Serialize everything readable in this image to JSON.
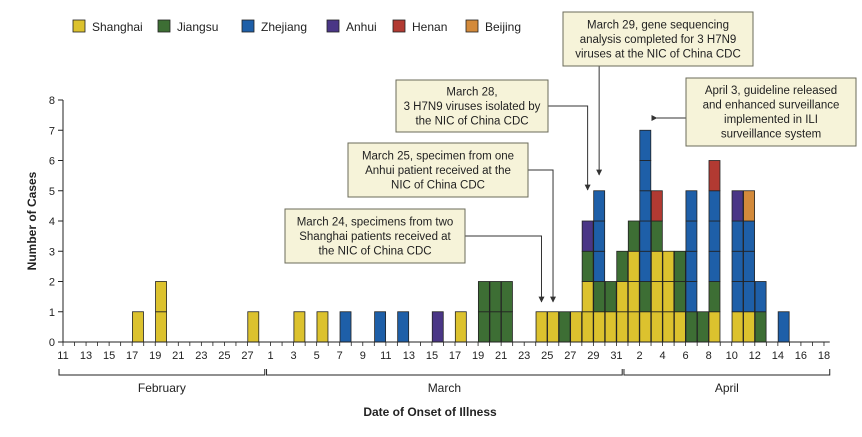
{
  "chart_data": {
    "type": "bar",
    "stacked": true,
    "ylabel": "Number of Cases",
    "xlabel": "Date of Onset of Illness",
    "ylim": [
      0,
      8
    ],
    "yticks": [
      "0",
      "1",
      "2",
      "3",
      "4",
      "5",
      "6",
      "7",
      "8"
    ],
    "grid": false,
    "legend_position": "top-left",
    "days": [
      "2013-02-11",
      "2013-02-12",
      "2013-02-13",
      "2013-02-14",
      "2013-02-15",
      "2013-02-16",
      "2013-02-17",
      "2013-02-18",
      "2013-02-19",
      "2013-02-20",
      "2013-02-21",
      "2013-02-22",
      "2013-02-23",
      "2013-02-24",
      "2013-02-25",
      "2013-02-26",
      "2013-02-27",
      "2013-02-28",
      "2013-03-01",
      "2013-03-02",
      "2013-03-03",
      "2013-03-04",
      "2013-03-05",
      "2013-03-06",
      "2013-03-07",
      "2013-03-08",
      "2013-03-09",
      "2013-03-10",
      "2013-03-11",
      "2013-03-12",
      "2013-03-13",
      "2013-03-14",
      "2013-03-15",
      "2013-03-16",
      "2013-03-17",
      "2013-03-18",
      "2013-03-19",
      "2013-03-20",
      "2013-03-21",
      "2013-03-22",
      "2013-03-23",
      "2013-03-24",
      "2013-03-25",
      "2013-03-26",
      "2013-03-27",
      "2013-03-28",
      "2013-03-29",
      "2013-03-30",
      "2013-03-31",
      "2013-04-01",
      "2013-04-02",
      "2013-04-03",
      "2013-04-04",
      "2013-04-05",
      "2013-04-06",
      "2013-04-07",
      "2013-04-08",
      "2013-04-09",
      "2013-04-10",
      "2013-04-11",
      "2013-04-12",
      "2013-04-13",
      "2013-04-14",
      "2013-04-15",
      "2013-04-16",
      "2013-04-17",
      "2013-04-18"
    ],
    "tick_labels": [
      {
        "date": "2013-02-11",
        "label": "11"
      },
      {
        "date": "2013-02-13",
        "label": "13"
      },
      {
        "date": "2013-02-15",
        "label": "15"
      },
      {
        "date": "2013-02-17",
        "label": "17"
      },
      {
        "date": "2013-02-19",
        "label": "19"
      },
      {
        "date": "2013-02-21",
        "label": "21"
      },
      {
        "date": "2013-02-23",
        "label": "23"
      },
      {
        "date": "2013-02-25",
        "label": "25"
      },
      {
        "date": "2013-02-27",
        "label": "27"
      },
      {
        "date": "2013-03-01",
        "label": "1"
      },
      {
        "date": "2013-03-03",
        "label": "3"
      },
      {
        "date": "2013-03-05",
        "label": "5"
      },
      {
        "date": "2013-03-07",
        "label": "7"
      },
      {
        "date": "2013-03-09",
        "label": "9"
      },
      {
        "date": "2013-03-11",
        "label": "11"
      },
      {
        "date": "2013-03-13",
        "label": "13"
      },
      {
        "date": "2013-03-15",
        "label": "15"
      },
      {
        "date": "2013-03-17",
        "label": "17"
      },
      {
        "date": "2013-03-19",
        "label": "19"
      },
      {
        "date": "2013-03-21",
        "label": "21"
      },
      {
        "date": "2013-03-23",
        "label": "23"
      },
      {
        "date": "2013-03-25",
        "label": "25"
      },
      {
        "date": "2013-03-27",
        "label": "27"
      },
      {
        "date": "2013-03-29",
        "label": "29"
      },
      {
        "date": "2013-03-31",
        "label": "31"
      },
      {
        "date": "2013-04-02",
        "label": "2"
      },
      {
        "date": "2013-04-04",
        "label": "4"
      },
      {
        "date": "2013-04-06",
        "label": "6"
      },
      {
        "date": "2013-04-08",
        "label": "8"
      },
      {
        "date": "2013-04-10",
        "label": "10"
      },
      {
        "date": "2013-04-12",
        "label": "12"
      },
      {
        "date": "2013-04-14",
        "label": "14"
      },
      {
        "date": "2013-04-16",
        "label": "16"
      },
      {
        "date": "2013-04-18",
        "label": "18"
      }
    ],
    "months": [
      {
        "label": "February",
        "start": "2013-02-11",
        "end": "2013-02-28"
      },
      {
        "label": "March",
        "start": "2013-03-01",
        "end": "2013-03-31"
      },
      {
        "label": "April",
        "start": "2013-04-01",
        "end": "2013-04-18"
      }
    ],
    "series": [
      {
        "name": "Shanghai",
        "color": "#dcc22e",
        "cases": {
          "2013-02-17": 1,
          "2013-02-19": 2,
          "2013-02-27": 1,
          "2013-03-03": 1,
          "2013-03-05": 1,
          "2013-03-17": 1,
          "2013-03-24": 1,
          "2013-03-25": 1,
          "2013-03-27": 1,
          "2013-03-28": 2,
          "2013-03-29": 1,
          "2013-03-30": 1,
          "2013-03-31": 2,
          "2013-04-01": 3,
          "2013-04-02": 1,
          "2013-04-03": 3,
          "2013-04-04": 3,
          "2013-04-05": 1,
          "2013-04-08": 1,
          "2013-04-10": 1,
          "2013-04-11": 1
        }
      },
      {
        "name": "Jiangsu",
        "color": "#3d6e34",
        "cases": {
          "2013-03-19": 2,
          "2013-03-20": 2,
          "2013-03-21": 2,
          "2013-03-26": 1,
          "2013-03-28": 1,
          "2013-03-29": 1,
          "2013-03-30": 1,
          "2013-03-31": 1,
          "2013-04-01": 1,
          "2013-04-02": 1,
          "2013-04-03": 1,
          "2013-04-05": 2,
          "2013-04-06": 1,
          "2013-04-07": 1,
          "2013-04-08": 1,
          "2013-04-12": 1
        }
      },
      {
        "name": "Zhejiang",
        "color": "#1e5fa8",
        "cases": {
          "2013-03-07": 1,
          "2013-03-10": 1,
          "2013-03-12": 1,
          "2013-03-29": 3,
          "2013-04-02": 5,
          "2013-04-06": 4,
          "2013-04-08": 3,
          "2013-04-10": 3,
          "2013-04-11": 3,
          "2013-04-12": 1,
          "2013-04-14": 1
        }
      },
      {
        "name": "Anhui",
        "color": "#4a3686",
        "cases": {
          "2013-03-15": 1,
          "2013-03-28": 1,
          "2013-04-10": 1
        }
      },
      {
        "name": "Henan",
        "color": "#b23a32",
        "cases": {
          "2013-04-03": 1,
          "2013-04-08": 1
        }
      },
      {
        "name": "Beijing",
        "color": "#d38a3b",
        "cases": {
          "2013-04-11": 1
        }
      }
    ],
    "annotations": [
      {
        "id": "mar24",
        "target": "2013-03-24",
        "lines": [
          "March 24, specimens from two",
          "Shanghai patients received at",
          "the NIC of China CDC"
        ]
      },
      {
        "id": "mar25",
        "target": "2013-03-25",
        "lines": [
          "March 25, specimen from one",
          "Anhui patient received at the",
          "NIC of China CDC"
        ]
      },
      {
        "id": "mar28",
        "target": "2013-03-28",
        "lines": [
          "March 28,",
          "3 H7N9 viruses isolated by",
          "the NIC of China CDC"
        ]
      },
      {
        "id": "mar29",
        "target": "2013-03-29",
        "lines": [
          "March 29, gene sequencing",
          "analysis completed for 3 H7N9",
          "viruses at the NIC of China CDC"
        ]
      },
      {
        "id": "apr3",
        "target": "2013-04-03",
        "lines": [
          "April 3, guideline released",
          "and enhanced surveillance",
          "implemented in ILI",
          "surveillance system"
        ]
      }
    ]
  }
}
